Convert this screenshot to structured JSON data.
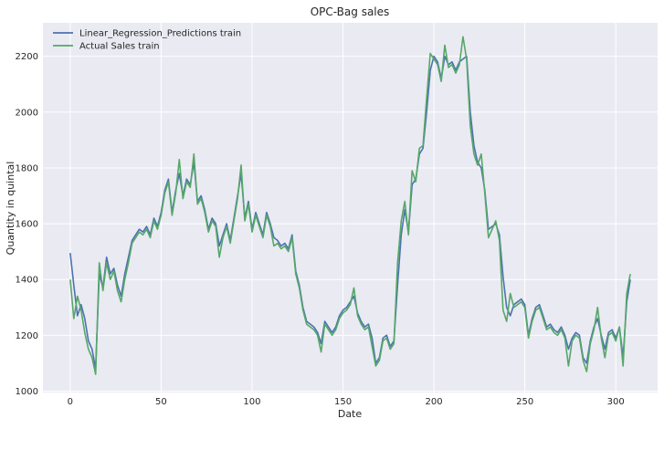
{
  "chart_data": {
    "type": "line",
    "title": "OPC-Bag sales",
    "xlabel": "Date",
    "ylabel": "Quantity in quintal",
    "xlim": [
      -15,
      323
    ],
    "ylim": [
      995,
      2320
    ],
    "xticks": [
      0,
      50,
      100,
      150,
      200,
      250,
      300
    ],
    "yticks": [
      1000,
      1200,
      1400,
      1600,
      1800,
      2000,
      2200
    ],
    "grid": true,
    "legend_position": "top-left",
    "background": "#eaeaf2",
    "series": [
      {
        "name": "Linear_Regression_Predictions train",
        "color": "#4c72b0",
        "points": [
          [
            0,
            1495
          ],
          [
            2,
            1380
          ],
          [
            4,
            1270
          ],
          [
            6,
            1310
          ],
          [
            8,
            1260
          ],
          [
            10,
            1180
          ],
          [
            12,
            1150
          ],
          [
            14,
            1080
          ],
          [
            16,
            1420
          ],
          [
            18,
            1370
          ],
          [
            20,
            1480
          ],
          [
            22,
            1420
          ],
          [
            24,
            1440
          ],
          [
            26,
            1380
          ],
          [
            28,
            1340
          ],
          [
            30,
            1420
          ],
          [
            32,
            1480
          ],
          [
            34,
            1540
          ],
          [
            36,
            1560
          ],
          [
            38,
            1580
          ],
          [
            40,
            1570
          ],
          [
            42,
            1590
          ],
          [
            44,
            1560
          ],
          [
            46,
            1620
          ],
          [
            48,
            1590
          ],
          [
            50,
            1640
          ],
          [
            52,
            1720
          ],
          [
            54,
            1760
          ],
          [
            56,
            1640
          ],
          [
            58,
            1720
          ],
          [
            60,
            1780
          ],
          [
            62,
            1700
          ],
          [
            64,
            1760
          ],
          [
            66,
            1740
          ],
          [
            68,
            1820
          ],
          [
            70,
            1680
          ],
          [
            72,
            1700
          ],
          [
            74,
            1650
          ],
          [
            76,
            1580
          ],
          [
            78,
            1620
          ],
          [
            80,
            1600
          ],
          [
            82,
            1520
          ],
          [
            84,
            1560
          ],
          [
            86,
            1600
          ],
          [
            88,
            1540
          ],
          [
            90,
            1620
          ],
          [
            92,
            1700
          ],
          [
            94,
            1780
          ],
          [
            96,
            1620
          ],
          [
            98,
            1680
          ],
          [
            100,
            1580
          ],
          [
            102,
            1640
          ],
          [
            104,
            1600
          ],
          [
            106,
            1560
          ],
          [
            108,
            1640
          ],
          [
            110,
            1600
          ],
          [
            112,
            1550
          ],
          [
            114,
            1540
          ],
          [
            116,
            1520
          ],
          [
            118,
            1530
          ],
          [
            120,
            1510
          ],
          [
            122,
            1560
          ],
          [
            124,
            1430
          ],
          [
            126,
            1380
          ],
          [
            128,
            1300
          ],
          [
            130,
            1250
          ],
          [
            132,
            1240
          ],
          [
            134,
            1230
          ],
          [
            136,
            1210
          ],
          [
            138,
            1170
          ],
          [
            140,
            1250
          ],
          [
            142,
            1230
          ],
          [
            144,
            1210
          ],
          [
            146,
            1230
          ],
          [
            148,
            1270
          ],
          [
            150,
            1290
          ],
          [
            152,
            1300
          ],
          [
            154,
            1320
          ],
          [
            156,
            1340
          ],
          [
            158,
            1280
          ],
          [
            160,
            1250
          ],
          [
            162,
            1230
          ],
          [
            164,
            1240
          ],
          [
            166,
            1190
          ],
          [
            168,
            1100
          ],
          [
            170,
            1120
          ],
          [
            172,
            1190
          ],
          [
            174,
            1200
          ],
          [
            176,
            1160
          ],
          [
            178,
            1180
          ],
          [
            180,
            1380
          ],
          [
            182,
            1560
          ],
          [
            184,
            1650
          ],
          [
            186,
            1570
          ],
          [
            188,
            1740
          ],
          [
            190,
            1760
          ],
          [
            192,
            1850
          ],
          [
            194,
            1870
          ],
          [
            196,
            2000
          ],
          [
            198,
            2150
          ],
          [
            200,
            2200
          ],
          [
            202,
            2180
          ],
          [
            204,
            2120
          ],
          [
            206,
            2200
          ],
          [
            208,
            2170
          ],
          [
            210,
            2180
          ],
          [
            212,
            2150
          ],
          [
            214,
            2180
          ],
          [
            216,
            2190
          ],
          [
            218,
            2200
          ],
          [
            220,
            2000
          ],
          [
            222,
            1880
          ],
          [
            224,
            1820
          ],
          [
            226,
            1800
          ],
          [
            228,
            1720
          ],
          [
            230,
            1580
          ],
          [
            232,
            1590
          ],
          [
            234,
            1600
          ],
          [
            236,
            1560
          ],
          [
            238,
            1410
          ],
          [
            240,
            1300
          ],
          [
            242,
            1270
          ],
          [
            244,
            1310
          ],
          [
            246,
            1320
          ],
          [
            248,
            1330
          ],
          [
            250,
            1310
          ],
          [
            252,
            1200
          ],
          [
            254,
            1260
          ],
          [
            256,
            1300
          ],
          [
            258,
            1310
          ],
          [
            260,
            1270
          ],
          [
            262,
            1230
          ],
          [
            264,
            1240
          ],
          [
            266,
            1220
          ],
          [
            268,
            1210
          ],
          [
            270,
            1230
          ],
          [
            272,
            1200
          ],
          [
            274,
            1150
          ],
          [
            276,
            1190
          ],
          [
            278,
            1210
          ],
          [
            280,
            1200
          ],
          [
            282,
            1120
          ],
          [
            284,
            1100
          ],
          [
            286,
            1180
          ],
          [
            288,
            1230
          ],
          [
            290,
            1260
          ],
          [
            292,
            1200
          ],
          [
            294,
            1150
          ],
          [
            296,
            1210
          ],
          [
            298,
            1220
          ],
          [
            300,
            1190
          ],
          [
            302,
            1230
          ],
          [
            304,
            1120
          ],
          [
            306,
            1320
          ],
          [
            308,
            1400
          ]
        ]
      },
      {
        "name": "Actual Sales train",
        "color": "#55a868",
        "points": [
          [
            0,
            1400
          ],
          [
            2,
            1260
          ],
          [
            4,
            1340
          ],
          [
            6,
            1290
          ],
          [
            8,
            1210
          ],
          [
            10,
            1150
          ],
          [
            12,
            1120
          ],
          [
            14,
            1060
          ],
          [
            16,
            1460
          ],
          [
            18,
            1360
          ],
          [
            20,
            1460
          ],
          [
            22,
            1400
          ],
          [
            24,
            1430
          ],
          [
            26,
            1360
          ],
          [
            28,
            1320
          ],
          [
            30,
            1400
          ],
          [
            32,
            1460
          ],
          [
            34,
            1530
          ],
          [
            36,
            1550
          ],
          [
            38,
            1570
          ],
          [
            40,
            1560
          ],
          [
            42,
            1580
          ],
          [
            44,
            1550
          ],
          [
            46,
            1610
          ],
          [
            48,
            1580
          ],
          [
            50,
            1630
          ],
          [
            52,
            1710
          ],
          [
            54,
            1750
          ],
          [
            56,
            1630
          ],
          [
            58,
            1710
          ],
          [
            60,
            1830
          ],
          [
            62,
            1690
          ],
          [
            64,
            1750
          ],
          [
            66,
            1730
          ],
          [
            68,
            1850
          ],
          [
            70,
            1670
          ],
          [
            72,
            1690
          ],
          [
            74,
            1640
          ],
          [
            76,
            1570
          ],
          [
            78,
            1610
          ],
          [
            80,
            1590
          ],
          [
            82,
            1480
          ],
          [
            84,
            1550
          ],
          [
            86,
            1590
          ],
          [
            88,
            1530
          ],
          [
            90,
            1610
          ],
          [
            92,
            1690
          ],
          [
            94,
            1810
          ],
          [
            96,
            1610
          ],
          [
            98,
            1670
          ],
          [
            100,
            1570
          ],
          [
            102,
            1630
          ],
          [
            104,
            1590
          ],
          [
            106,
            1550
          ],
          [
            108,
            1630
          ],
          [
            110,
            1590
          ],
          [
            112,
            1520
          ],
          [
            114,
            1530
          ],
          [
            116,
            1510
          ],
          [
            118,
            1520
          ],
          [
            120,
            1500
          ],
          [
            122,
            1550
          ],
          [
            124,
            1420
          ],
          [
            126,
            1370
          ],
          [
            128,
            1290
          ],
          [
            130,
            1240
          ],
          [
            132,
            1230
          ],
          [
            134,
            1220
          ],
          [
            136,
            1200
          ],
          [
            138,
            1140
          ],
          [
            140,
            1240
          ],
          [
            142,
            1220
          ],
          [
            144,
            1200
          ],
          [
            146,
            1220
          ],
          [
            148,
            1260
          ],
          [
            150,
            1280
          ],
          [
            152,
            1290
          ],
          [
            154,
            1310
          ],
          [
            156,
            1370
          ],
          [
            158,
            1270
          ],
          [
            160,
            1240
          ],
          [
            162,
            1220
          ],
          [
            164,
            1230
          ],
          [
            166,
            1160
          ],
          [
            168,
            1090
          ],
          [
            170,
            1110
          ],
          [
            172,
            1180
          ],
          [
            174,
            1190
          ],
          [
            176,
            1150
          ],
          [
            178,
            1170
          ],
          [
            180,
            1460
          ],
          [
            182,
            1610
          ],
          [
            184,
            1680
          ],
          [
            186,
            1560
          ],
          [
            188,
            1790
          ],
          [
            190,
            1750
          ],
          [
            192,
            1870
          ],
          [
            194,
            1880
          ],
          [
            196,
            2050
          ],
          [
            198,
            2210
          ],
          [
            200,
            2190
          ],
          [
            202,
            2170
          ],
          [
            204,
            2110
          ],
          [
            206,
            2240
          ],
          [
            208,
            2160
          ],
          [
            210,
            2170
          ],
          [
            212,
            2140
          ],
          [
            214,
            2170
          ],
          [
            216,
            2270
          ],
          [
            218,
            2190
          ],
          [
            220,
            1950
          ],
          [
            222,
            1850
          ],
          [
            224,
            1810
          ],
          [
            226,
            1850
          ],
          [
            228,
            1710
          ],
          [
            230,
            1550
          ],
          [
            232,
            1580
          ],
          [
            234,
            1610
          ],
          [
            236,
            1540
          ],
          [
            238,
            1290
          ],
          [
            240,
            1250
          ],
          [
            242,
            1350
          ],
          [
            244,
            1300
          ],
          [
            246,
            1310
          ],
          [
            248,
            1320
          ],
          [
            250,
            1300
          ],
          [
            252,
            1190
          ],
          [
            254,
            1250
          ],
          [
            256,
            1290
          ],
          [
            258,
            1300
          ],
          [
            260,
            1260
          ],
          [
            262,
            1220
          ],
          [
            264,
            1230
          ],
          [
            266,
            1210
          ],
          [
            268,
            1200
          ],
          [
            270,
            1220
          ],
          [
            272,
            1190
          ],
          [
            274,
            1090
          ],
          [
            276,
            1180
          ],
          [
            278,
            1200
          ],
          [
            280,
            1190
          ],
          [
            282,
            1110
          ],
          [
            284,
            1070
          ],
          [
            286,
            1170
          ],
          [
            288,
            1220
          ],
          [
            290,
            1300
          ],
          [
            292,
            1190
          ],
          [
            294,
            1120
          ],
          [
            296,
            1200
          ],
          [
            298,
            1210
          ],
          [
            300,
            1180
          ],
          [
            302,
            1230
          ],
          [
            304,
            1090
          ],
          [
            306,
            1350
          ],
          [
            308,
            1420
          ]
        ]
      }
    ]
  }
}
